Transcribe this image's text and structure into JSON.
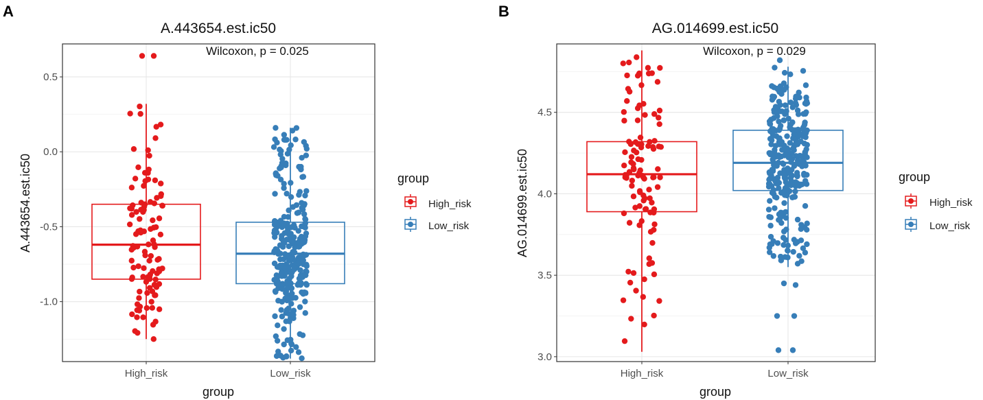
{
  "chart_data": [
    {
      "type": "boxplot",
      "panel_label": "A",
      "title": "A.443654.est.ic50",
      "annotation": "Wilcoxon, p = 0.025",
      "xlabel": "group",
      "ylabel": "A.443654.est.ic50",
      "categories": [
        "High_risk",
        "Low_risk"
      ],
      "ylim": [
        -1.4,
        0.72
      ],
      "yticks": [
        -1.0,
        -0.5,
        0.0,
        0.5
      ],
      "ytick_labels": [
        "-1.0",
        "-0.5",
        "0.0",
        "0.5"
      ],
      "series": [
        {
          "name": "High_risk",
          "color": "#e41a1c",
          "min": -1.25,
          "q1": -0.85,
          "median": -0.62,
          "q3": -0.35,
          "max": 0.32,
          "n_points": 110,
          "outliers": [
            0.64,
            0.64
          ]
        },
        {
          "name": "Low_risk",
          "color": "#377eb8",
          "min": -1.38,
          "q1": -0.88,
          "median": -0.68,
          "q3": -0.47,
          "max": 0.16,
          "n_points": 300,
          "outliers": []
        }
      ],
      "legend": {
        "title": "group",
        "entries": [
          "High_risk",
          "Low_risk"
        ],
        "position": "right"
      }
    },
    {
      "type": "boxplot",
      "panel_label": "B",
      "title": "AG.014699.est.ic50",
      "annotation": "Wilcoxon, p = 0.029",
      "xlabel": "group",
      "ylabel": "AG.014699.est.ic50",
      "categories": [
        "High_risk",
        "Low_risk"
      ],
      "ylim": [
        2.97,
        4.92
      ],
      "yticks": [
        3.0,
        3.5,
        4.0,
        4.5
      ],
      "ytick_labels": [
        "3.0",
        "3.5",
        "4.0",
        "4.5"
      ],
      "series": [
        {
          "name": "High_risk",
          "color": "#e41a1c",
          "min": 3.03,
          "q1": 3.89,
          "median": 4.12,
          "q3": 4.32,
          "max": 4.88,
          "n_points": 110,
          "outliers": []
        },
        {
          "name": "Low_risk",
          "color": "#377eb8",
          "min": 3.55,
          "q1": 4.02,
          "median": 4.19,
          "q3": 4.39,
          "max": 4.78,
          "n_points": 300,
          "outliers": [
            3.45,
            3.44,
            3.25,
            3.25,
            3.04,
            3.04,
            4.82
          ]
        }
      ],
      "legend": {
        "title": "group",
        "entries": [
          "High_risk",
          "Low_risk"
        ],
        "position": "right"
      }
    }
  ]
}
